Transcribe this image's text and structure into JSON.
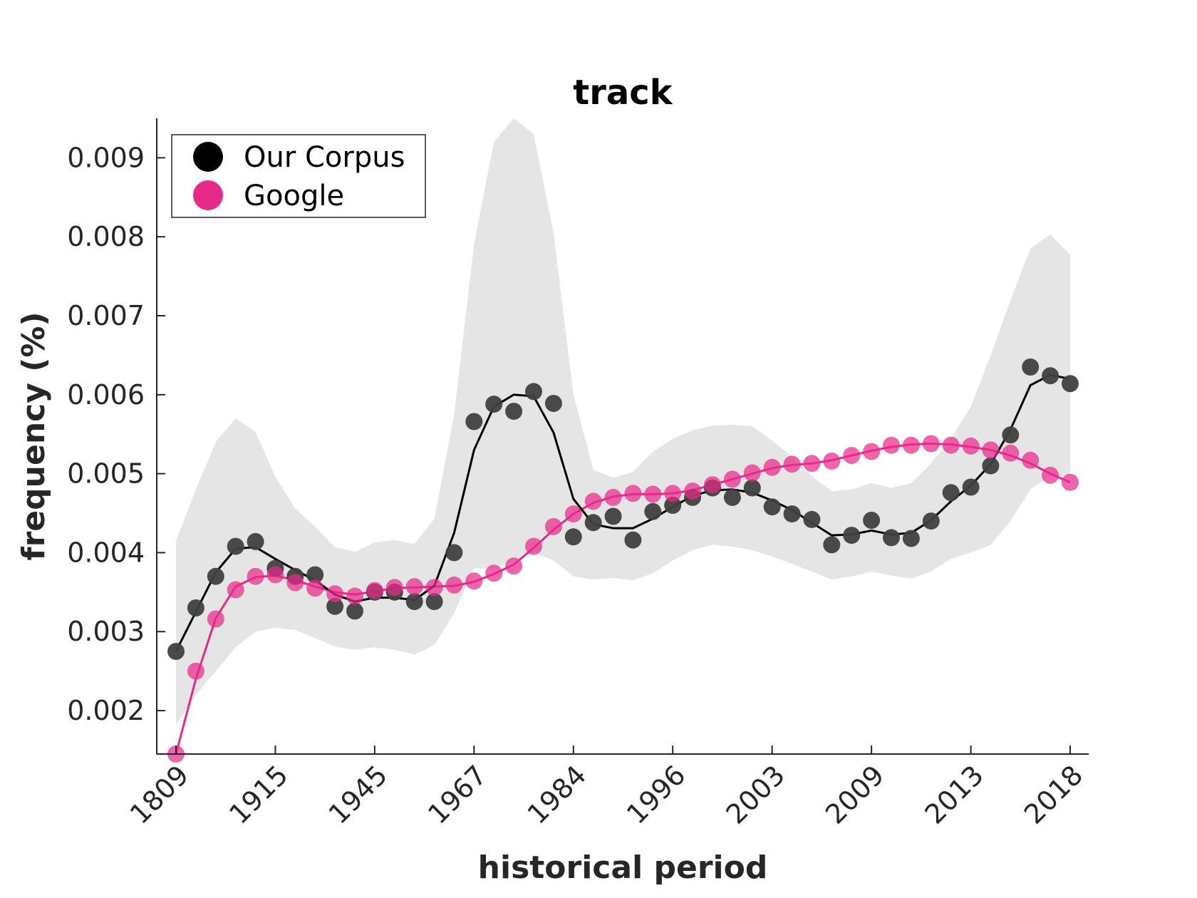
{
  "chart_data": {
    "type": "scatter",
    "title": "track",
    "xlabel": "historical period",
    "ylabel": "frequency (%)",
    "ylim": [
      0.00145,
      0.0095
    ],
    "y_ticks": [
      0.002,
      0.003,
      0.004,
      0.005,
      0.006,
      0.007,
      0.008,
      0.009
    ],
    "y_tick_labels": [
      "0.002",
      "0.003",
      "0.004",
      "0.005",
      "0.006",
      "0.007",
      "0.008",
      "0.009"
    ],
    "x_tick_labels": [
      "1809",
      "1915",
      "1945",
      "1967",
      "1984",
      "1996",
      "2003",
      "2009",
      "2013",
      "2018"
    ],
    "x_tick_indices": [
      0,
      5,
      10,
      15,
      20,
      25,
      30,
      35,
      40,
      45
    ],
    "grid": false,
    "legend_position": "top-left",
    "series": [
      {
        "name": "Our Corpus",
        "color": "#404040",
        "line_color": "#000000",
        "points": [
          0.00275,
          0.0033,
          0.0037,
          0.00408,
          0.00414,
          0.0038,
          0.0037,
          0.00372,
          0.00332,
          0.00326,
          0.0035,
          0.0035,
          0.00338,
          0.00338,
          0.004,
          0.00566,
          0.00588,
          0.00579,
          0.00604,
          0.00589,
          0.0042,
          0.00438,
          0.00446,
          0.00416,
          0.00452,
          0.0046,
          0.0047,
          0.00482,
          0.0047,
          0.00482,
          0.00458,
          0.00449,
          0.00442,
          0.0041,
          0.00422,
          0.00441,
          0.00419,
          0.00418,
          0.0044,
          0.00476,
          0.00483,
          0.0051,
          0.00549,
          0.00635,
          0.00624,
          0.00614
        ],
        "smooth": [
          0.00275,
          0.00325,
          0.00375,
          0.00405,
          0.00407,
          0.00392,
          0.00378,
          0.00365,
          0.00347,
          0.00338,
          0.00343,
          0.00343,
          0.0034,
          0.00358,
          0.00425,
          0.0053,
          0.00585,
          0.006,
          0.00598,
          0.00552,
          0.00468,
          0.00436,
          0.00431,
          0.00431,
          0.00443,
          0.00458,
          0.00472,
          0.00479,
          0.0048,
          0.00476,
          0.00466,
          0.00454,
          0.00438,
          0.00422,
          0.00423,
          0.00428,
          0.00423,
          0.00425,
          0.00441,
          0.00465,
          0.00485,
          0.00512,
          0.00556,
          0.00612,
          0.00625,
          0.0062
        ],
        "band_upper": [
          0.00415,
          0.0048,
          0.0054,
          0.0057,
          0.00553,
          0.00496,
          0.00456,
          0.00433,
          0.00407,
          0.00401,
          0.00413,
          0.00416,
          0.00411,
          0.00443,
          0.00575,
          0.0079,
          0.0092,
          0.0095,
          0.0093,
          0.00805,
          0.006,
          0.00505,
          0.00495,
          0.00502,
          0.00528,
          0.00544,
          0.00555,
          0.00561,
          0.00562,
          0.0056,
          0.00542,
          0.00522,
          0.00497,
          0.00478,
          0.0048,
          0.00488,
          0.00482,
          0.00488,
          0.00513,
          0.00545,
          0.00585,
          0.0065,
          0.0072,
          0.00785,
          0.00803,
          0.00777
        ],
        "band_lower": [
          0.00182,
          0.0022,
          0.0025,
          0.0028,
          0.003,
          0.00305,
          0.00302,
          0.00292,
          0.00281,
          0.00277,
          0.0028,
          0.00277,
          0.00271,
          0.00283,
          0.00323,
          0.0038,
          0.0038,
          0.0039,
          0.004,
          0.0039,
          0.0037,
          0.00366,
          0.00368,
          0.00365,
          0.00374,
          0.0039,
          0.00403,
          0.0041,
          0.00408,
          0.00403,
          0.00395,
          0.00386,
          0.00376,
          0.00366,
          0.0037,
          0.00376,
          0.00371,
          0.00367,
          0.00376,
          0.00392,
          0.004,
          0.0041,
          0.0044,
          0.0048,
          0.00497,
          0.00497
        ]
      },
      {
        "name": "Google",
        "color": "#e7298a",
        "line_color": "#e7298a",
        "points": [
          0.00145,
          0.0025,
          0.00316,
          0.00353,
          0.0037,
          0.00372,
          0.00362,
          0.00355,
          0.00348,
          0.00345,
          0.00352,
          0.00356,
          0.00357,
          0.00356,
          0.00359,
          0.00364,
          0.00374,
          0.00383,
          0.00408,
          0.00433,
          0.00449,
          0.00465,
          0.0047,
          0.00475,
          0.00474,
          0.00475,
          0.00478,
          0.00486,
          0.00493,
          0.00501,
          0.00508,
          0.00512,
          0.00513,
          0.00516,
          0.00523,
          0.00528,
          0.00536,
          0.00536,
          0.00538,
          0.00536,
          0.00535,
          0.0053,
          0.00526,
          0.00517,
          0.00498,
          0.00489
        ],
        "smooth": [
          0.00145,
          0.0024,
          0.00317,
          0.00357,
          0.00369,
          0.00371,
          0.00365,
          0.00357,
          0.0035,
          0.00347,
          0.00351,
          0.00355,
          0.00356,
          0.00357,
          0.00358,
          0.00363,
          0.00373,
          0.00385,
          0.00406,
          0.00429,
          0.00449,
          0.00463,
          0.00471,
          0.00474,
          0.00474,
          0.00475,
          0.00479,
          0.00486,
          0.00493,
          0.005,
          0.00507,
          0.00511,
          0.00513,
          0.00517,
          0.00523,
          0.00529,
          0.00534,
          0.00537,
          0.00538,
          0.00537,
          0.00534,
          0.0053,
          0.00523,
          0.00513,
          0.005,
          0.00489
        ]
      }
    ]
  }
}
